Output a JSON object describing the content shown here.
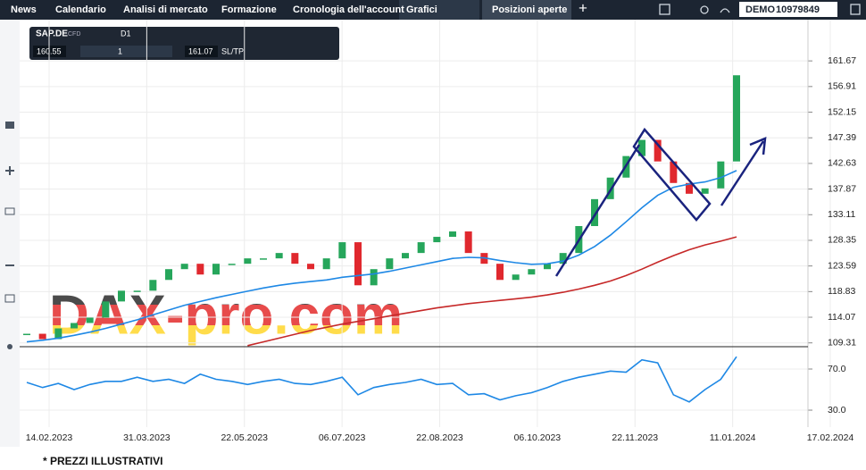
{
  "nav": {
    "items": [
      "News",
      "Calendario",
      "Analisi di mercato",
      "Formazione",
      "Cronologia dell'account"
    ],
    "active_tab": "Grafici",
    "tab2": "Posizioni aperte",
    "account_label": "DEMO",
    "account_number": "10979849"
  },
  "toolbar": {
    "symbol": "SAP.DE",
    "kind": "CFD",
    "timeframe": "D1",
    "bid": 160.55,
    "volume": 1,
    "ask": 161.07,
    "sltp": "SL/TP"
  },
  "watermark": "DAX-pro.com",
  "footnote": "* PREZZI ILLUSTRATIVI",
  "chart_data": [
    {
      "type": "candlestick",
      "ylim": [
        108.6,
        168
      ],
      "grid": true,
      "yticks": [
        161.67,
        156.91,
        152.15,
        147.39,
        142.63,
        137.87,
        133.11,
        128.35,
        123.59,
        118.83,
        114.07,
        109.31
      ],
      "series": [
        {
          "color": "#26a65b",
          "down_color": "#e0282e",
          "values": [
            111,
            110,
            112,
            113,
            114,
            117,
            119,
            119,
            121,
            123,
            124,
            122,
            124,
            124,
            125,
            125,
            126,
            124,
            123,
            125,
            128,
            120,
            123,
            125,
            126,
            128,
            129,
            130,
            126,
            124,
            121,
            122,
            123,
            124,
            126,
            131,
            136,
            140,
            144,
            147,
            143,
            139,
            137,
            138,
            143,
            159
          ]
        },
        {
          "type": "line",
          "color": "#1e88e5",
          "values": [
            109.5,
            109.8,
            110.2,
            110.7,
            111.3,
            112,
            112.8,
            113.6,
            114.5,
            115.4,
            116.3,
            117,
            117.7,
            118.3,
            118.9,
            119.5,
            120,
            120.4,
            120.7,
            121,
            121.5,
            121.8,
            122.1,
            122.6,
            123.2,
            123.8,
            124.4,
            125,
            125.2,
            125.1,
            124.6,
            124.2,
            123.9,
            124,
            124.5,
            125.6,
            127.2,
            129.3,
            131.8,
            134.4,
            136.7,
            138.2,
            138.8,
            139.2,
            140,
            141.3
          ]
        },
        {
          "type": "line",
          "color": "#c62828",
          "values": [
            null,
            null,
            null,
            null,
            null,
            null,
            null,
            null,
            null,
            null,
            null,
            null,
            null,
            null,
            108.8,
            109.5,
            110.2,
            110.9,
            111.6,
            112.2,
            112.8,
            113.3,
            113.8,
            114.3,
            114.8,
            115.3,
            115.8,
            116.2,
            116.6,
            116.9,
            117.2,
            117.5,
            117.8,
            118.2,
            118.7,
            119.3,
            120,
            120.8,
            121.8,
            123,
            124.3,
            125.5,
            126.6,
            127.5,
            128.2,
            129
          ]
        }
      ]
    },
    {
      "type": "line",
      "ylim": [
        13.5,
        90
      ],
      "grid": true,
      "yticks": [
        {
          "value": 70,
          "label": "70.0"
        },
        {
          "value": 30,
          "label": "30.0"
        }
      ],
      "x_labels": [
        "14.02.2023",
        "31.03.2023",
        "22.05.2023",
        "06.07.2023",
        "22.08.2023",
        "06.10.2023",
        "22.11.2023",
        "11.01.2024",
        "17.02.2024"
      ],
      "series": [
        {
          "color": "#1e88e5",
          "values": [
            57,
            52,
            56,
            50,
            55,
            58,
            58,
            62,
            58,
            60,
            56,
            65,
            60,
            58,
            55,
            58,
            60,
            56,
            55,
            58,
            62,
            45,
            52,
            55,
            57,
            60,
            55,
            56,
            45,
            46,
            40,
            44,
            47,
            52,
            58,
            62,
            65,
            68,
            67,
            79,
            76,
            45,
            38,
            50,
            60,
            82
          ]
        }
      ]
    }
  ]
}
